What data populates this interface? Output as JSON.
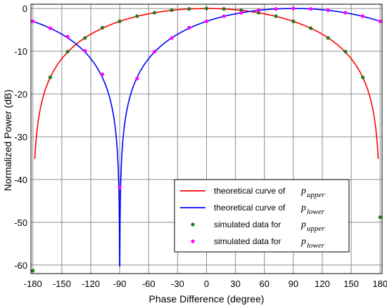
{
  "chart_data": {
    "type": "line",
    "xlabel": "Phase Difference (degree)",
    "ylabel": "Normalized Power (dB)",
    "xlim": [
      -182,
      182
    ],
    "ylim": [
      -62,
      1
    ],
    "xticks": [
      -180,
      -150,
      -120,
      -90,
      -60,
      -30,
      0,
      30,
      60,
      90,
      120,
      150,
      180
    ],
    "yticks": [
      0,
      -10,
      -20,
      -30,
      -40,
      -50,
      -60
    ],
    "grid": true,
    "legend_position": "bottom-right",
    "series": [
      {
        "legend_text": "theoretical curve of",
        "symbol": "p",
        "subscript": "upper",
        "kind": "line",
        "color": "#ff0000",
        "center_deg": 0,
        "x_range": [
          -178,
          178
        ]
      },
      {
        "legend_text": "theoretical curve of",
        "symbol": "p",
        "subscript": "lower",
        "kind": "line",
        "color": "#0000ff",
        "center_deg": 90,
        "x_range": [
          -178,
          178
        ]
      },
      {
        "legend_text": "simulated data for",
        "symbol": "p",
        "subscript": "upper",
        "kind": "points",
        "color": "#1e7b1e",
        "points": [
          [
            -180,
            -61.3
          ],
          [
            -162,
            -16.1
          ],
          [
            -144,
            -10.1
          ],
          [
            -126,
            -6.9
          ],
          [
            -108,
            -4.5
          ],
          [
            -90,
            -3.0
          ],
          [
            -72,
            -1.8
          ],
          [
            -54,
            -1.0
          ],
          [
            -36,
            -0.4
          ],
          [
            -18,
            -0.1
          ],
          [
            0,
            0.0
          ],
          [
            18,
            -0.1
          ],
          [
            36,
            -0.4
          ],
          [
            54,
            -1.0
          ],
          [
            72,
            -1.8
          ],
          [
            90,
            -3.0
          ],
          [
            108,
            -4.6
          ],
          [
            126,
            -6.9
          ],
          [
            144,
            -10.1
          ],
          [
            162,
            -16.1
          ],
          [
            180,
            -48.8
          ]
        ]
      },
      {
        "legend_text": "simulated data for",
        "symbol": "p",
        "subscript": "lower",
        "kind": "points",
        "color": "#ff00ff",
        "points": [
          [
            -180,
            -3.0
          ],
          [
            -162,
            -4.6
          ],
          [
            -144,
            -6.6
          ],
          [
            -126,
            -9.9
          ],
          [
            -108,
            -15.4
          ],
          [
            -90,
            -41.8
          ],
          [
            -72,
            -16.4
          ],
          [
            -54,
            -10.1
          ],
          [
            -36,
            -6.9
          ],
          [
            -18,
            -4.5
          ],
          [
            0,
            -3.0
          ],
          [
            18,
            -1.8
          ],
          [
            36,
            -1.0
          ],
          [
            54,
            -0.4
          ],
          [
            72,
            -0.1
          ],
          [
            90,
            0.0
          ],
          [
            108,
            -0.1
          ],
          [
            126,
            -0.4
          ],
          [
            144,
            -1.0
          ],
          [
            162,
            -1.8
          ],
          [
            180,
            -3.0
          ]
        ]
      }
    ]
  }
}
